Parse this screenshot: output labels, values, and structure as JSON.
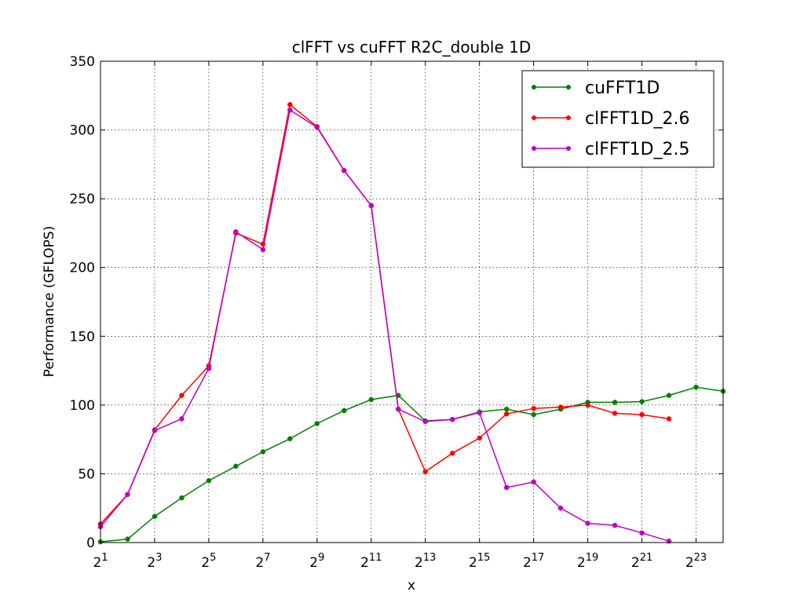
{
  "chart_data": {
    "type": "line",
    "title": "clFFT vs cuFFT R2C_double 1D",
    "xlabel": "x",
    "ylabel": "Performance (GFLOPS)",
    "x_scale": "log2",
    "xlim": [
      2,
      16777216
    ],
    "ylim": [
      0,
      350
    ],
    "x_ticks": [
      {
        "base": "2",
        "exp": "1",
        "value": 2
      },
      {
        "base": "2",
        "exp": "3",
        "value": 8
      },
      {
        "base": "2",
        "exp": "5",
        "value": 32
      },
      {
        "base": "2",
        "exp": "7",
        "value": 128
      },
      {
        "base": "2",
        "exp": "9",
        "value": 512
      },
      {
        "base": "2",
        "exp": "11",
        "value": 2048
      },
      {
        "base": "2",
        "exp": "13",
        "value": 8192
      },
      {
        "base": "2",
        "exp": "15",
        "value": 32768
      },
      {
        "base": "2",
        "exp": "17",
        "value": 131072
      },
      {
        "base": "2",
        "exp": "19",
        "value": 524288
      },
      {
        "base": "2",
        "exp": "21",
        "value": 2097152
      },
      {
        "base": "2",
        "exp": "23",
        "value": 8388608
      }
    ],
    "y_ticks": [
      "0",
      "50",
      "100",
      "150",
      "200",
      "250",
      "300",
      "350"
    ],
    "grid": true,
    "legend_position": "top-right",
    "series": [
      {
        "name": "cuFFT1D",
        "color": "#008000",
        "x": [
          2,
          4,
          8,
          16,
          32,
          64,
          128,
          256,
          512,
          1024,
          2048,
          4096,
          8192,
          16384,
          32768,
          65536,
          131072,
          262144,
          524288,
          1048576,
          2097152,
          4194304,
          8388608,
          16777216
        ],
        "y": [
          0.5,
          2.5,
          19,
          32.5,
          45,
          55.5,
          66,
          75.5,
          86.5,
          96,
          104,
          107,
          88.5,
          89.5,
          95,
          97,
          93,
          97,
          102,
          102,
          102.5,
          107,
          113,
          110
        ]
      },
      {
        "name": "clFFT1D_2.6",
        "color": "#ff0000",
        "x": [
          2,
          4,
          8,
          16,
          32,
          64,
          128,
          256,
          512,
          1024,
          2048,
          4096,
          8192,
          16384,
          32768,
          65536,
          131072,
          262144,
          524288,
          1048576,
          2097152,
          4194304
        ],
        "y": [
          13.5,
          35,
          82,
          107,
          128.5,
          225,
          217,
          318.5,
          302.5,
          270.5,
          245,
          97,
          51.5,
          65,
          76,
          93.5,
          97.5,
          98.5,
          100,
          94,
          93,
          90
        ]
      },
      {
        "name": "clFFT1D_2.5",
        "color": "#bf00bf",
        "x": [
          2,
          4,
          8,
          16,
          32,
          64,
          128,
          256,
          512,
          1024,
          2048,
          4096,
          8192,
          16384,
          32768,
          65536,
          131072,
          262144,
          524288,
          1048576,
          2097152,
          4194304
        ],
        "y": [
          11.5,
          35,
          81.5,
          90,
          126.5,
          226,
          213,
          314.5,
          302,
          270.5,
          245,
          97,
          88,
          89.5,
          94.5,
          40,
          44,
          25,
          14,
          12.5,
          7,
          1
        ]
      }
    ]
  }
}
